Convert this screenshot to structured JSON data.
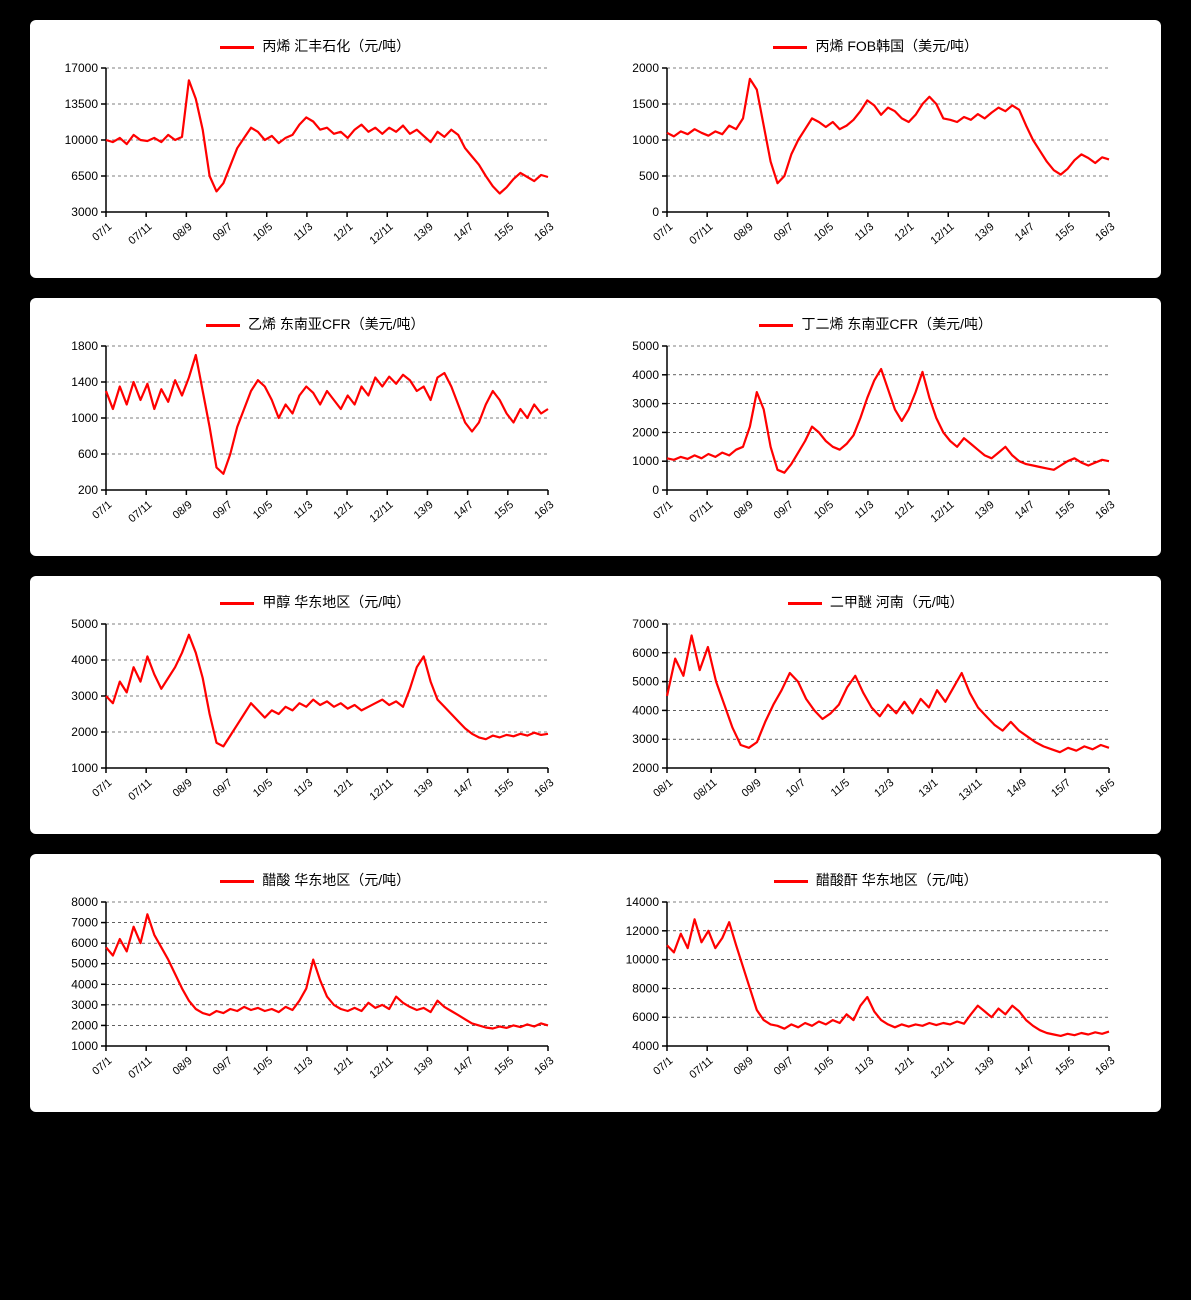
{
  "line_color": "#ff0000",
  "background_color": "#ffffff",
  "page_background": "#000000",
  "grid_color": "#000000",
  "axis_color": "#000000",
  "line_width": 2.2,
  "legend_swatch_width": 34,
  "font_family": "Microsoft YaHei, SimSun, Arial, sans-serif",
  "tick_fontsize": 12,
  "xtick_fontsize": 11,
  "legend_fontsize": 14,
  "x_labels_std": [
    "07/1",
    "07/11",
    "08/9",
    "09/7",
    "10/5",
    "11/3",
    "12/1",
    "12/11",
    "13/9",
    "14/7",
    "15/5",
    "16/3"
  ],
  "x_labels_alt": [
    "08/1",
    "08/11",
    "09/9",
    "10/7",
    "11/5",
    "12/3",
    "13/1",
    "13/11",
    "14/9",
    "15/7",
    "16/5"
  ],
  "charts": [
    {
      "id": "chart-a",
      "type": "line",
      "legend": "丙烯 汇丰石化（元/吨）",
      "x_labels_key": "x_labels_std",
      "ylim": [
        3000,
        17000
      ],
      "ytick_step": 3500,
      "yticks": [
        3000,
        6500,
        10000,
        13500,
        17000
      ],
      "values": [
        10000,
        9800,
        10200,
        9600,
        10500,
        10000,
        9900,
        10200,
        9800,
        10500,
        10000,
        10300,
        15800,
        14000,
        11000,
        6500,
        5000,
        5800,
        7500,
        9200,
        10200,
        11200,
        10800,
        10000,
        10400,
        9700,
        10200,
        10500,
        11500,
        12200,
        11800,
        11000,
        11200,
        10600,
        10800,
        10200,
        11000,
        11500,
        10800,
        11200,
        10600,
        11200,
        10800,
        11400,
        10600,
        11000,
        10400,
        9800,
        10800,
        10300,
        11000,
        10500,
        9200,
        8400,
        7600,
        6500,
        5500,
        4800,
        5400,
        6200,
        6800,
        6400,
        6000,
        6600,
        6400
      ]
    },
    {
      "id": "chart-b",
      "type": "line",
      "legend": "丙烯 FOB韩国（美元/吨）",
      "x_labels_key": "x_labels_std",
      "ylim": [
        0,
        2000
      ],
      "ytick_step": 500,
      "yticks": [
        0,
        500,
        1000,
        1500,
        2000
      ],
      "values": [
        1100,
        1050,
        1120,
        1080,
        1150,
        1100,
        1060,
        1120,
        1080,
        1200,
        1150,
        1300,
        1850,
        1700,
        1200,
        700,
        400,
        500,
        800,
        1000,
        1150,
        1300,
        1250,
        1180,
        1250,
        1150,
        1200,
        1280,
        1400,
        1550,
        1480,
        1350,
        1450,
        1400,
        1300,
        1250,
        1350,
        1500,
        1600,
        1500,
        1300,
        1280,
        1250,
        1320,
        1280,
        1360,
        1300,
        1380,
        1450,
        1400,
        1480,
        1420,
        1200,
        1000,
        850,
        700,
        580,
        520,
        600,
        720,
        800,
        750,
        680,
        760,
        730
      ]
    },
    {
      "id": "chart-c",
      "type": "line",
      "legend": "乙烯 东南亚CFR（美元/吨）",
      "x_labels_key": "x_labels_std",
      "ylim": [
        200,
        1800
      ],
      "ytick_step": 400,
      "yticks": [
        200,
        600,
        1000,
        1400,
        1800
      ],
      "values": [
        1300,
        1100,
        1350,
        1150,
        1400,
        1200,
        1380,
        1100,
        1320,
        1180,
        1420,
        1250,
        1450,
        1700,
        1300,
        900,
        450,
        380,
        600,
        900,
        1100,
        1300,
        1420,
        1350,
        1200,
        1000,
        1150,
        1050,
        1250,
        1350,
        1280,
        1150,
        1300,
        1200,
        1100,
        1250,
        1150,
        1350,
        1250,
        1450,
        1350,
        1460,
        1380,
        1480,
        1420,
        1300,
        1350,
        1200,
        1450,
        1500,
        1350,
        1150,
        950,
        850,
        950,
        1150,
        1300,
        1200,
        1050,
        950,
        1100,
        1000,
        1150,
        1050,
        1100
      ]
    },
    {
      "id": "chart-d",
      "type": "line",
      "legend": "丁二烯 东南亚CFR（美元/吨）",
      "x_labels_key": "x_labels_std",
      "ylim": [
        0,
        5000
      ],
      "ytick_step": 1000,
      "yticks": [
        0,
        1000,
        2000,
        3000,
        4000,
        5000
      ],
      "values": [
        1100,
        1050,
        1150,
        1080,
        1200,
        1100,
        1250,
        1150,
        1300,
        1200,
        1400,
        1500,
        2200,
        3400,
        2800,
        1500,
        700,
        600,
        900,
        1300,
        1700,
        2200,
        2000,
        1700,
        1500,
        1400,
        1600,
        1900,
        2500,
        3200,
        3800,
        4200,
        3500,
        2800,
        2400,
        2800,
        3400,
        4100,
        3200,
        2500,
        2000,
        1700,
        1500,
        1800,
        1600,
        1400,
        1200,
        1100,
        1300,
        1500,
        1200,
        1000,
        900,
        850,
        800,
        750,
        700,
        850,
        1000,
        1100,
        950,
        850,
        950,
        1050,
        1000
      ]
    },
    {
      "id": "chart-e",
      "type": "line",
      "legend": "甲醇 华东地区（元/吨）",
      "x_labels_key": "x_labels_std",
      "ylim": [
        1000,
        5000
      ],
      "ytick_step": 1000,
      "yticks": [
        1000,
        2000,
        3000,
        4000,
        5000
      ],
      "values": [
        3000,
        2800,
        3400,
        3100,
        3800,
        3400,
        4100,
        3600,
        3200,
        3500,
        3800,
        4200,
        4700,
        4200,
        3500,
        2500,
        1700,
        1600,
        1900,
        2200,
        2500,
        2800,
        2600,
        2400,
        2600,
        2500,
        2700,
        2600,
        2800,
        2700,
        2900,
        2750,
        2850,
        2700,
        2800,
        2650,
        2750,
        2600,
        2700,
        2800,
        2900,
        2750,
        2850,
        2700,
        3200,
        3800,
        4100,
        3400,
        2900,
        2700,
        2500,
        2300,
        2100,
        1950,
        1850,
        1800,
        1900,
        1850,
        1920,
        1880,
        1950,
        1900,
        1980,
        1920,
        1950
      ]
    },
    {
      "id": "chart-f",
      "type": "line",
      "legend": "二甲醚 河南（元/吨）",
      "x_labels_key": "x_labels_alt",
      "ylim": [
        2000,
        7000
      ],
      "ytick_step": 1000,
      "yticks": [
        2000,
        3000,
        4000,
        5000,
        6000,
        7000
      ],
      "values": [
        4500,
        5800,
        5200,
        6600,
        5400,
        6200,
        5000,
        4200,
        3400,
        2800,
        2700,
        2900,
        3600,
        4200,
        4700,
        5300,
        5000,
        4400,
        4000,
        3700,
        3900,
        4200,
        4800,
        5200,
        4600,
        4100,
        3800,
        4200,
        3900,
        4300,
        3900,
        4400,
        4100,
        4700,
        4300,
        4800,
        5300,
        4600,
        4100,
        3800,
        3500,
        3300,
        3600,
        3300,
        3100,
        2900,
        2750,
        2650,
        2550,
        2700,
        2600,
        2750,
        2650,
        2800,
        2700
      ]
    },
    {
      "id": "chart-g",
      "type": "line",
      "legend": "醋酸 华东地区（元/吨）",
      "x_labels_key": "x_labels_std",
      "ylim": [
        1000,
        8000
      ],
      "ytick_step": 1000,
      "yticks": [
        1000,
        2000,
        3000,
        4000,
        5000,
        6000,
        7000,
        8000
      ],
      "values": [
        5800,
        5400,
        6200,
        5600,
        6800,
        6000,
        7400,
        6400,
        5800,
        5200,
        4500,
        3800,
        3200,
        2800,
        2600,
        2500,
        2700,
        2600,
        2800,
        2700,
        2900,
        2750,
        2850,
        2700,
        2800,
        2650,
        2900,
        2750,
        3200,
        3800,
        5200,
        4200,
        3400,
        3000,
        2800,
        2700,
        2850,
        2700,
        3100,
        2850,
        3000,
        2800,
        3400,
        3100,
        2900,
        2750,
        2850,
        2650,
        3200,
        2900,
        2700,
        2500,
        2300,
        2100,
        2000,
        1900,
        1850,
        1950,
        1880,
        2000,
        1920,
        2050,
        1950,
        2100,
        2000
      ]
    },
    {
      "id": "chart-h",
      "type": "line",
      "legend": "醋酸酐 华东地区（元/吨）",
      "x_labels_key": "x_labels_std",
      "ylim": [
        4000,
        14000
      ],
      "ytick_step": 2000,
      "yticks": [
        4000,
        6000,
        8000,
        10000,
        12000,
        14000
      ],
      "values": [
        11000,
        10500,
        11800,
        10800,
        12800,
        11200,
        12000,
        10800,
        11500,
        12600,
        11000,
        9500,
        8000,
        6500,
        5800,
        5500,
        5400,
        5200,
        5500,
        5300,
        5600,
        5400,
        5700,
        5500,
        5800,
        5600,
        6200,
        5800,
        6800,
        7400,
        6400,
        5800,
        5500,
        5300,
        5500,
        5350,
        5500,
        5400,
        5600,
        5450,
        5600,
        5500,
        5700,
        5550,
        6200,
        6800,
        6400,
        6000,
        6600,
        6200,
        6800,
        6400,
        5800,
        5400,
        5100,
        4900,
        4800,
        4700,
        4850,
        4750,
        4900,
        4800,
        4950,
        4850,
        5000
      ]
    }
  ]
}
